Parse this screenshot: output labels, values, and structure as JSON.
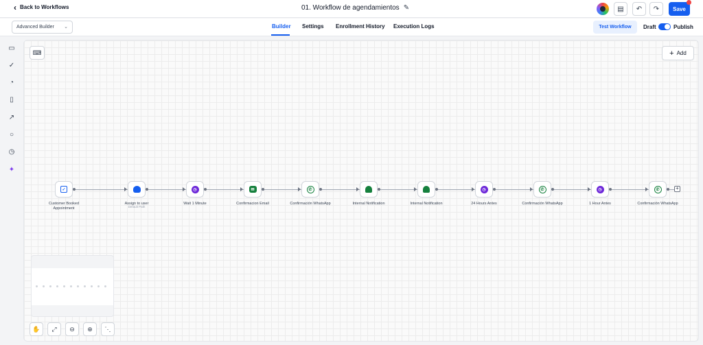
{
  "header": {
    "back_label": "Back to Workflows",
    "workflow_title": "01. Workflow de agendamientos",
    "save_label": "Save"
  },
  "subbar": {
    "builder_mode": "Advanced Builder",
    "tabs": [
      {
        "label": "Builder",
        "active": true
      },
      {
        "label": "Settings",
        "active": false
      },
      {
        "label": "Enrollment History",
        "active": false
      },
      {
        "label": "Execution Logs",
        "active": false
      }
    ],
    "test_label": "Test Workflow",
    "draft_label": "Draft",
    "publish_label": "Publish",
    "publish_toggle_on": true
  },
  "sidebar": {
    "icons": [
      "chat-icon",
      "check-circle-icon",
      "pie-chart-icon",
      "file-icon",
      "external-link-icon",
      "search-icon",
      "history-icon",
      "ai-sparkle-icon"
    ]
  },
  "canvas": {
    "add_label": "Add",
    "nodes": [
      {
        "label": "Customer Booked",
        "label2": "Appointment",
        "icon": "calendar-check-icon",
        "sub": ""
      },
      {
        "label": "Assign to user",
        "label2": "",
        "icon": "user-icon",
        "sub": "Default Path"
      },
      {
        "label": "Wait 1 Minute",
        "label2": "",
        "icon": "clock-icon",
        "sub": ""
      },
      {
        "label": "Confirmacion Email",
        "label2": "",
        "icon": "mail-icon",
        "sub": ""
      },
      {
        "label": "Confirmación WhatsApp",
        "label2": "",
        "icon": "whatsapp-icon",
        "sub": ""
      },
      {
        "label": "Internal Notification",
        "label2": "",
        "icon": "bell-icon",
        "sub": ""
      },
      {
        "label": "Internal Notification",
        "label2": "",
        "icon": "bell-icon",
        "sub": ""
      },
      {
        "label": "24 Hours Antes",
        "label2": "",
        "icon": "clock-icon",
        "sub": ""
      },
      {
        "label": "Confirmación WhatsApp",
        "label2": "",
        "icon": "whatsapp-icon",
        "sub": ""
      },
      {
        "label": "1 Hour Antes",
        "label2": "",
        "icon": "clock-icon",
        "sub": ""
      },
      {
        "label": "Confirmación WhatsApp",
        "label2": "",
        "icon": "whatsapp-icon",
        "sub": ""
      }
    ]
  },
  "colors": {
    "accent": "#155eef",
    "ai": "#7c3aed",
    "clock": "#6d28d9",
    "green": "#15803d"
  }
}
